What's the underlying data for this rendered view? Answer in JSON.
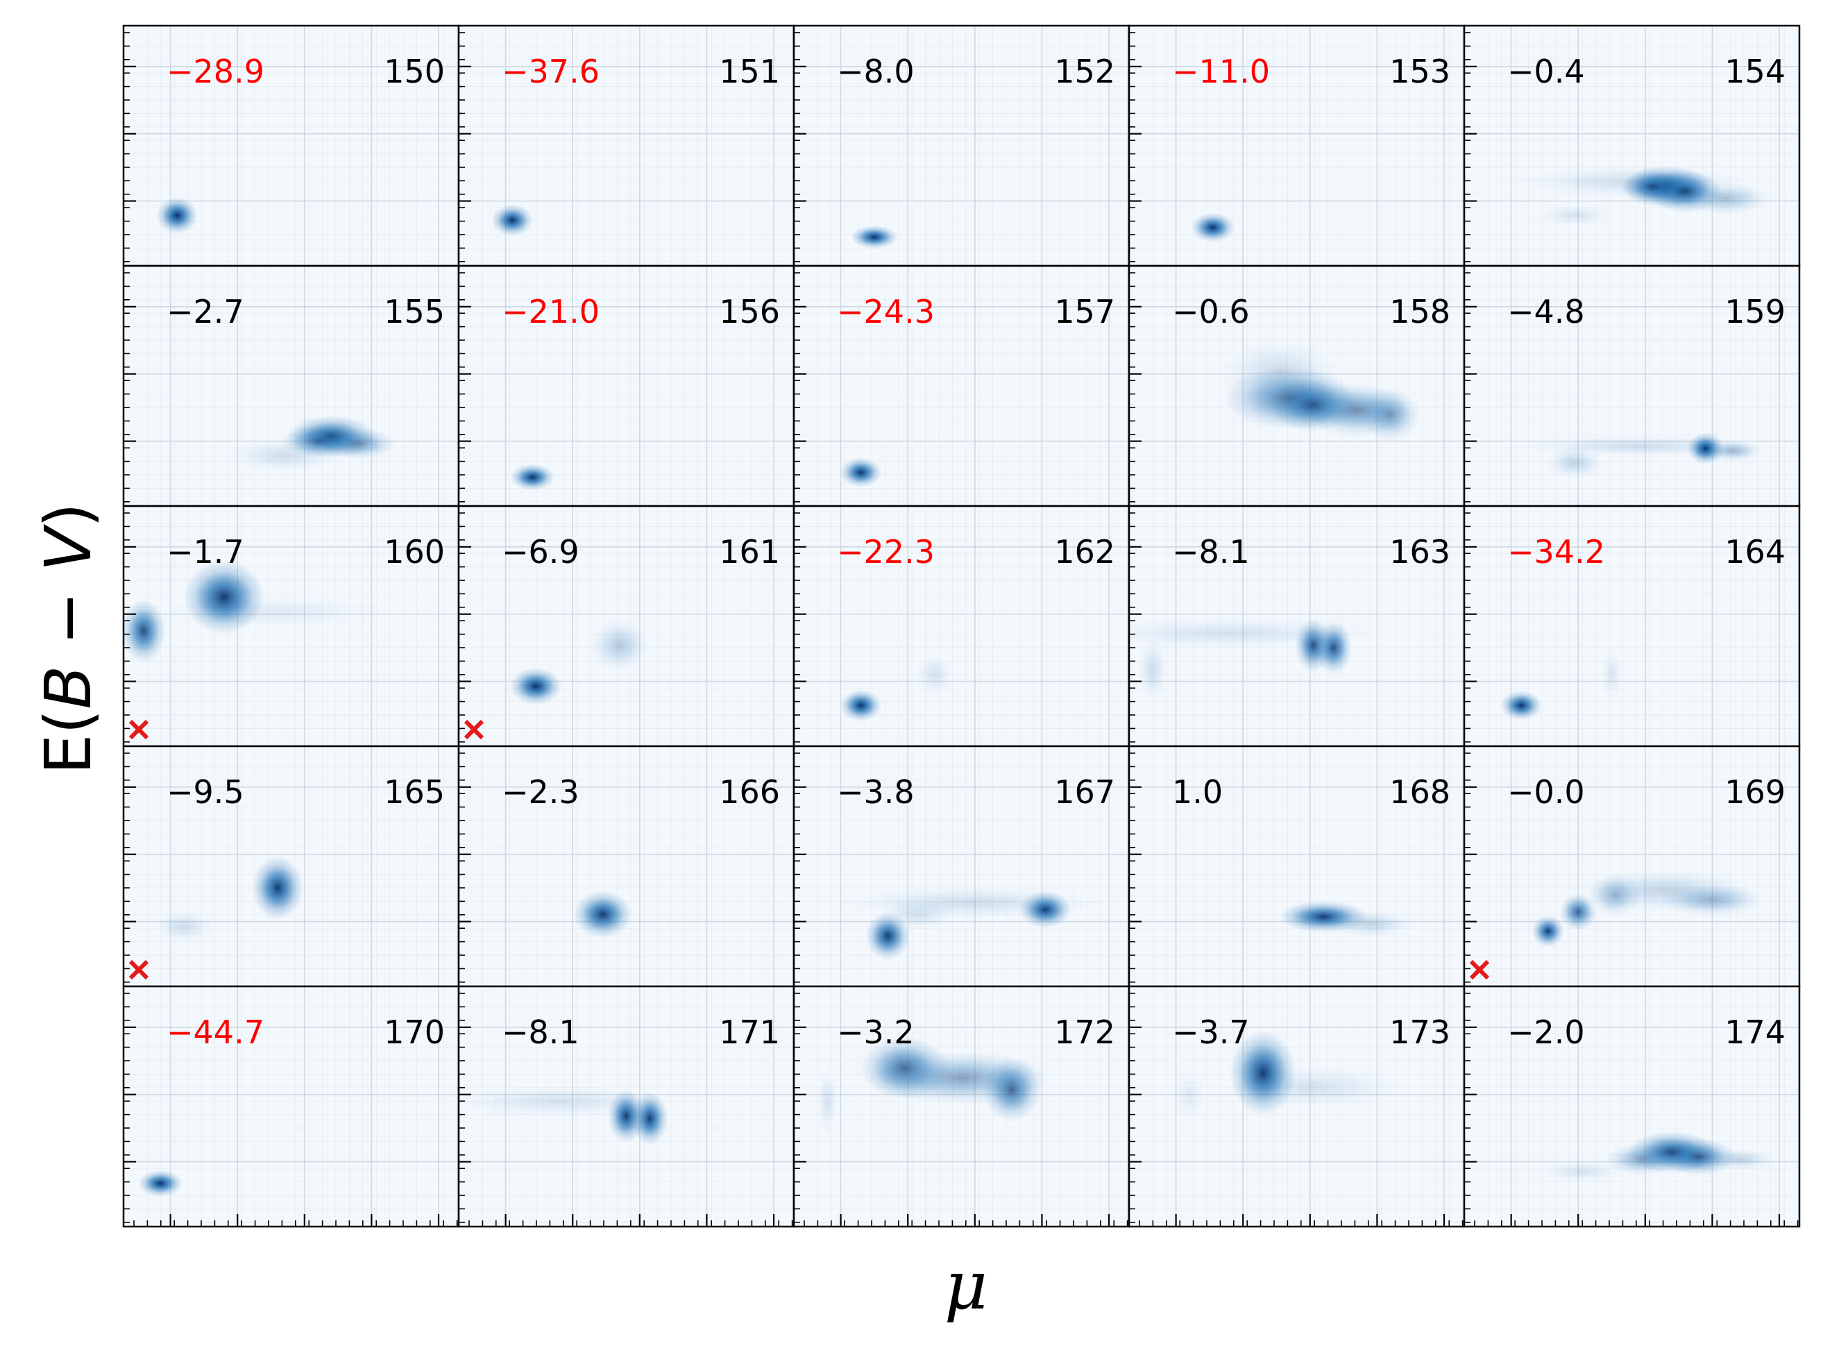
{
  "figure": {
    "xlabel": "μ",
    "ylabel_parts": [
      "E(",
      "B",
      " − ",
      "V",
      ")"
    ]
  },
  "colors": {
    "blob_dark": "#08306b",
    "blob_mid": "#2171b5",
    "panel_bg": "#f3f8fd",
    "grid": "#b9c5d1",
    "negative_label": "#ff0000",
    "default_label": "#000000",
    "marker": "#e41a1c"
  },
  "chart_data": {
    "type": "heatmap",
    "layout": {
      "rows": 5,
      "cols": 5
    },
    "xlim": [
      0,
      1
    ],
    "ylim": [
      0,
      1
    ],
    "grid": true,
    "panels": [
      {
        "id": "150",
        "value": "−28.9",
        "highlight": true,
        "flag": false,
        "blobs": [
          {
            "x": 0.16,
            "y": 0.21,
            "sx": 0.028,
            "sy": 0.035,
            "a": 1.0
          }
        ]
      },
      {
        "id": "151",
        "value": "−37.6",
        "highlight": true,
        "flag": false,
        "blobs": [
          {
            "x": 0.16,
            "y": 0.19,
            "sx": 0.028,
            "sy": 0.03,
            "a": 1.0
          }
        ]
      },
      {
        "id": "152",
        "value": "−8.0",
        "highlight": false,
        "flag": false,
        "blobs": [
          {
            "x": 0.24,
            "y": 0.12,
            "sx": 0.032,
            "sy": 0.022,
            "a": 1.0
          }
        ]
      },
      {
        "id": "153",
        "value": "−11.0",
        "highlight": true,
        "flag": false,
        "blobs": [
          {
            "x": 0.25,
            "y": 0.16,
            "sx": 0.03,
            "sy": 0.028,
            "a": 1.0
          }
        ]
      },
      {
        "id": "154",
        "value": "−0.4",
        "highlight": false,
        "flag": false,
        "blobs": [
          {
            "x": 0.5,
            "y": 0.35,
            "sx": 0.16,
            "sy": 0.03,
            "a": 0.15
          },
          {
            "x": 0.6,
            "y": 0.33,
            "sx": 0.06,
            "sy": 0.04,
            "a": 0.9
          },
          {
            "x": 0.66,
            "y": 0.31,
            "sx": 0.05,
            "sy": 0.04,
            "a": 0.85
          },
          {
            "x": 0.56,
            "y": 0.33,
            "sx": 0.04,
            "sy": 0.03,
            "a": 0.7
          },
          {
            "x": 0.78,
            "y": 0.28,
            "sx": 0.06,
            "sy": 0.03,
            "a": 0.3
          },
          {
            "x": 0.33,
            "y": 0.21,
            "sx": 0.05,
            "sy": 0.02,
            "a": 0.12
          }
        ]
      },
      {
        "id": "155",
        "value": "−2.7",
        "highlight": false,
        "flag": false,
        "blobs": [
          {
            "x": 0.62,
            "y": 0.29,
            "sx": 0.06,
            "sy": 0.04,
            "a": 0.9
          },
          {
            "x": 0.7,
            "y": 0.26,
            "sx": 0.05,
            "sy": 0.03,
            "a": 0.5
          },
          {
            "x": 0.48,
            "y": 0.21,
            "sx": 0.08,
            "sy": 0.03,
            "a": 0.15
          },
          {
            "x": 0.58,
            "y": 0.27,
            "sx": 0.05,
            "sy": 0.03,
            "a": 0.5
          }
        ]
      },
      {
        "id": "156",
        "value": "−21.0",
        "highlight": true,
        "flag": false,
        "blobs": [
          {
            "x": 0.22,
            "y": 0.12,
            "sx": 0.03,
            "sy": 0.025,
            "a": 1.0
          }
        ]
      },
      {
        "id": "157",
        "value": "−24.3",
        "highlight": true,
        "flag": false,
        "blobs": [
          {
            "x": 0.2,
            "y": 0.14,
            "sx": 0.028,
            "sy": 0.028,
            "a": 1.0
          }
        ]
      },
      {
        "id": "158",
        "value": "−0.6",
        "highlight": false,
        "flag": false,
        "blobs": [
          {
            "x": 0.48,
            "y": 0.45,
            "sx": 0.09,
            "sy": 0.06,
            "a": 0.65
          },
          {
            "x": 0.55,
            "y": 0.42,
            "sx": 0.06,
            "sy": 0.05,
            "a": 0.75
          },
          {
            "x": 0.68,
            "y": 0.4,
            "sx": 0.07,
            "sy": 0.05,
            "a": 0.55
          },
          {
            "x": 0.78,
            "y": 0.38,
            "sx": 0.04,
            "sy": 0.05,
            "a": 0.45
          },
          {
            "x": 0.45,
            "y": 0.56,
            "sx": 0.08,
            "sy": 0.06,
            "a": 0.15
          }
        ]
      },
      {
        "id": "159",
        "value": "−4.8",
        "highlight": false,
        "flag": false,
        "blobs": [
          {
            "x": 0.72,
            "y": 0.24,
            "sx": 0.025,
            "sy": 0.03,
            "a": 1.0
          },
          {
            "x": 0.52,
            "y": 0.25,
            "sx": 0.16,
            "sy": 0.02,
            "a": 0.15
          },
          {
            "x": 0.33,
            "y": 0.18,
            "sx": 0.04,
            "sy": 0.03,
            "a": 0.2
          },
          {
            "x": 0.8,
            "y": 0.23,
            "sx": 0.04,
            "sy": 0.02,
            "a": 0.35
          }
        ]
      },
      {
        "id": "160",
        "value": "−1.7",
        "highlight": false,
        "flag": true,
        "blobs": [
          {
            "x": 0.3,
            "y": 0.62,
            "sx": 0.055,
            "sy": 0.07,
            "a": 0.95
          },
          {
            "x": 0.06,
            "y": 0.48,
            "sx": 0.03,
            "sy": 0.06,
            "a": 0.85
          },
          {
            "x": 0.45,
            "y": 0.56,
            "sx": 0.15,
            "sy": 0.03,
            "a": 0.08
          }
        ]
      },
      {
        "id": "161",
        "value": "−6.9",
        "highlight": false,
        "flag": true,
        "blobs": [
          {
            "x": 0.23,
            "y": 0.25,
            "sx": 0.035,
            "sy": 0.035,
            "a": 1.0
          },
          {
            "x": 0.48,
            "y": 0.42,
            "sx": 0.04,
            "sy": 0.05,
            "a": 0.25
          }
        ]
      },
      {
        "id": "162",
        "value": "−22.3",
        "highlight": true,
        "flag": false,
        "blobs": [
          {
            "x": 0.2,
            "y": 0.17,
            "sx": 0.028,
            "sy": 0.03,
            "a": 1.0
          },
          {
            "x": 0.42,
            "y": 0.3,
            "sx": 0.025,
            "sy": 0.04,
            "a": 0.12
          }
        ]
      },
      {
        "id": "163",
        "value": "−8.1",
        "highlight": false,
        "flag": false,
        "blobs": [
          {
            "x": 0.55,
            "y": 0.42,
            "sx": 0.025,
            "sy": 0.05,
            "a": 0.85
          },
          {
            "x": 0.61,
            "y": 0.41,
            "sx": 0.025,
            "sy": 0.05,
            "a": 0.85
          },
          {
            "x": 0.3,
            "y": 0.47,
            "sx": 0.2,
            "sy": 0.03,
            "a": 0.12
          },
          {
            "x": 0.07,
            "y": 0.32,
            "sx": 0.02,
            "sy": 0.06,
            "a": 0.15
          }
        ]
      },
      {
        "id": "164",
        "value": "−34.2",
        "highlight": true,
        "flag": false,
        "blobs": [
          {
            "x": 0.17,
            "y": 0.17,
            "sx": 0.028,
            "sy": 0.028,
            "a": 1.0
          },
          {
            "x": 0.44,
            "y": 0.3,
            "sx": 0.015,
            "sy": 0.05,
            "a": 0.1
          }
        ]
      },
      {
        "id": "165",
        "value": "−9.5",
        "highlight": false,
        "flag": true,
        "blobs": [
          {
            "x": 0.46,
            "y": 0.41,
            "sx": 0.035,
            "sy": 0.06,
            "a": 0.95
          },
          {
            "x": 0.18,
            "y": 0.25,
            "sx": 0.04,
            "sy": 0.03,
            "a": 0.15
          }
        ]
      },
      {
        "id": "166",
        "value": "−2.3",
        "highlight": false,
        "flag": false,
        "blobs": [
          {
            "x": 0.43,
            "y": 0.3,
            "sx": 0.04,
            "sy": 0.045,
            "a": 0.95
          }
        ]
      },
      {
        "id": "167",
        "value": "−3.8",
        "highlight": false,
        "flag": false,
        "blobs": [
          {
            "x": 0.28,
            "y": 0.21,
            "sx": 0.03,
            "sy": 0.045,
            "a": 0.95
          },
          {
            "x": 0.75,
            "y": 0.32,
            "sx": 0.035,
            "sy": 0.035,
            "a": 0.95
          },
          {
            "x": 0.53,
            "y": 0.35,
            "sx": 0.18,
            "sy": 0.03,
            "a": 0.15
          },
          {
            "x": 0.37,
            "y": 0.3,
            "sx": 0.05,
            "sy": 0.03,
            "a": 0.12
          }
        ]
      },
      {
        "id": "168",
        "value": "1.0",
        "highlight": false,
        "flag": false,
        "blobs": [
          {
            "x": 0.58,
            "y": 0.29,
            "sx": 0.06,
            "sy": 0.03,
            "a": 0.95
          },
          {
            "x": 0.72,
            "y": 0.26,
            "sx": 0.06,
            "sy": 0.025,
            "a": 0.2
          }
        ]
      },
      {
        "id": "169",
        "value": "−0.0",
        "highlight": false,
        "flag": true,
        "blobs": [
          {
            "x": 0.25,
            "y": 0.23,
            "sx": 0.022,
            "sy": 0.03,
            "a": 0.95
          },
          {
            "x": 0.34,
            "y": 0.31,
            "sx": 0.025,
            "sy": 0.035,
            "a": 0.75
          },
          {
            "x": 0.45,
            "y": 0.38,
            "sx": 0.035,
            "sy": 0.04,
            "a": 0.35
          },
          {
            "x": 0.6,
            "y": 0.4,
            "sx": 0.12,
            "sy": 0.04,
            "a": 0.2
          },
          {
            "x": 0.74,
            "y": 0.36,
            "sx": 0.07,
            "sy": 0.03,
            "a": 0.35
          }
        ]
      },
      {
        "id": "170",
        "value": "−44.7",
        "highlight": true,
        "flag": false,
        "blobs": [
          {
            "x": 0.11,
            "y": 0.18,
            "sx": 0.03,
            "sy": 0.025,
            "a": 1.0
          }
        ]
      },
      {
        "id": "171",
        "value": "−8.1",
        "highlight": false,
        "flag": false,
        "blobs": [
          {
            "x": 0.5,
            "y": 0.46,
            "sx": 0.025,
            "sy": 0.05,
            "a": 0.95
          },
          {
            "x": 0.57,
            "y": 0.45,
            "sx": 0.025,
            "sy": 0.05,
            "a": 0.95
          },
          {
            "x": 0.3,
            "y": 0.52,
            "sx": 0.15,
            "sy": 0.03,
            "a": 0.12
          }
        ]
      },
      {
        "id": "172",
        "value": "−3.2",
        "highlight": false,
        "flag": false,
        "blobs": [
          {
            "x": 0.33,
            "y": 0.66,
            "sx": 0.06,
            "sy": 0.06,
            "a": 0.7
          },
          {
            "x": 0.5,
            "y": 0.62,
            "sx": 0.12,
            "sy": 0.05,
            "a": 0.45
          },
          {
            "x": 0.65,
            "y": 0.57,
            "sx": 0.04,
            "sy": 0.06,
            "a": 0.7
          },
          {
            "x": 0.1,
            "y": 0.52,
            "sx": 0.015,
            "sy": 0.06,
            "a": 0.12
          }
        ]
      },
      {
        "id": "173",
        "value": "−3.7",
        "highlight": false,
        "flag": false,
        "blobs": [
          {
            "x": 0.4,
            "y": 0.64,
            "sx": 0.045,
            "sy": 0.08,
            "a": 0.95
          },
          {
            "x": 0.55,
            "y": 0.58,
            "sx": 0.12,
            "sy": 0.04,
            "a": 0.12
          },
          {
            "x": 0.18,
            "y": 0.55,
            "sx": 0.02,
            "sy": 0.05,
            "a": 0.08
          }
        ]
      },
      {
        "id": "174",
        "value": "−2.0",
        "highlight": false,
        "flag": false,
        "blobs": [
          {
            "x": 0.62,
            "y": 0.31,
            "sx": 0.06,
            "sy": 0.04,
            "a": 0.9
          },
          {
            "x": 0.7,
            "y": 0.29,
            "sx": 0.05,
            "sy": 0.035,
            "a": 0.75
          },
          {
            "x": 0.53,
            "y": 0.28,
            "sx": 0.05,
            "sy": 0.03,
            "a": 0.4
          },
          {
            "x": 0.35,
            "y": 0.23,
            "sx": 0.06,
            "sy": 0.02,
            "a": 0.12
          },
          {
            "x": 0.82,
            "y": 0.28,
            "sx": 0.05,
            "sy": 0.02,
            "a": 0.2
          }
        ]
      }
    ]
  }
}
